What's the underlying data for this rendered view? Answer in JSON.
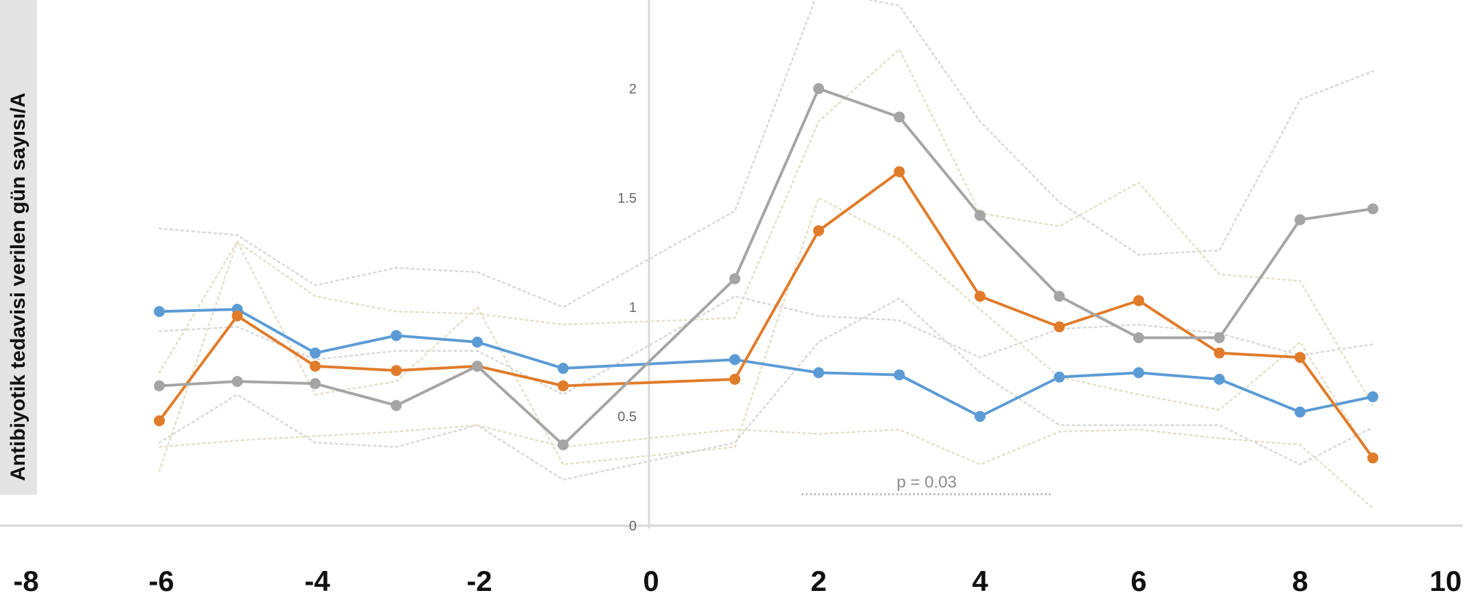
{
  "chart_data": {
    "type": "line",
    "ylabel": "Antibiyotik tedavisi verilen gün sayısı/A",
    "xlabel": "",
    "x_ticks": [
      "-8",
      "-6",
      "-4",
      "-2",
      "0",
      "2",
      "4",
      "6",
      "8",
      "10"
    ],
    "y_ticks": [
      "0",
      "0.5",
      "1",
      "1.5",
      "2"
    ],
    "xlim": [
      -8,
      10
    ],
    "ylim": [
      0,
      2.4
    ],
    "grid": false,
    "x": [
      -6,
      -5,
      -4,
      -3,
      -2,
      -1,
      1,
      2,
      3,
      4,
      5,
      6,
      7,
      8,
      9
    ],
    "series": [
      {
        "color": "#5b9bd5",
        "values": [
          0.98,
          0.99,
          0.79,
          0.87,
          0.84,
          0.72,
          0.76,
          0.7,
          0.69,
          0.5,
          0.68,
          0.7,
          0.67,
          0.52,
          0.59
        ]
      },
      {
        "color": "#e07b2a",
        "values": [
          0.48,
          0.96,
          0.73,
          0.71,
          0.73,
          0.64,
          0.67,
          1.35,
          1.62,
          1.05,
          0.91,
          1.03,
          0.79,
          0.77,
          0.31
        ]
      },
      {
        "color": "#a5a5a5",
        "values": [
          0.64,
          0.66,
          0.65,
          0.55,
          0.73,
          0.37,
          1.13,
          2.0,
          1.87,
          1.42,
          1.05,
          0.86,
          0.86,
          1.4,
          1.45
        ]
      }
    ],
    "background_series": [
      {
        "color": "#d8d8d8",
        "values": [
          1.36,
          1.33,
          1.1,
          1.18,
          1.16,
          1.0,
          1.44,
          2.45,
          2.38,
          1.85,
          1.48,
          1.24,
          1.26,
          1.95,
          2.08
        ]
      },
      {
        "color": "#e3dfc9",
        "values": [
          0.25,
          1.3,
          1.05,
          0.98,
          0.97,
          0.92,
          0.95,
          1.85,
          2.18,
          1.43,
          1.37,
          1.57,
          1.15,
          1.12,
          0.55
        ]
      },
      {
        "color": "#d8d8d8",
        "values": [
          0.89,
          0.91,
          0.76,
          0.8,
          0.8,
          0.6,
          1.05,
          0.96,
          0.94,
          0.77,
          0.9,
          0.92,
          0.88,
          0.78,
          0.83
        ]
      },
      {
        "color": "#e3dfc9",
        "values": [
          0.7,
          1.3,
          0.6,
          0.66,
          1.0,
          0.28,
          0.36,
          1.5,
          1.31,
          0.99,
          0.68,
          0.6,
          0.53,
          0.84,
          0.3
        ]
      },
      {
        "color": "#d8d8d8",
        "values": [
          0.38,
          0.6,
          0.38,
          0.36,
          0.46,
          0.21,
          0.38,
          0.84,
          1.04,
          0.7,
          0.46,
          0.46,
          0.46,
          0.28,
          0.45
        ]
      },
      {
        "color": "#e3dfc9",
        "values": [
          0.36,
          0.39,
          0.41,
          0.43,
          0.46,
          0.36,
          0.44,
          0.42,
          0.44,
          0.28,
          0.43,
          0.44,
          0.4,
          0.37,
          0.08
        ]
      }
    ],
    "annotations": [
      {
        "text": "p = 0.03",
        "x_range": [
          1.8,
          4.9
        ],
        "y": 0.15
      }
    ]
  }
}
